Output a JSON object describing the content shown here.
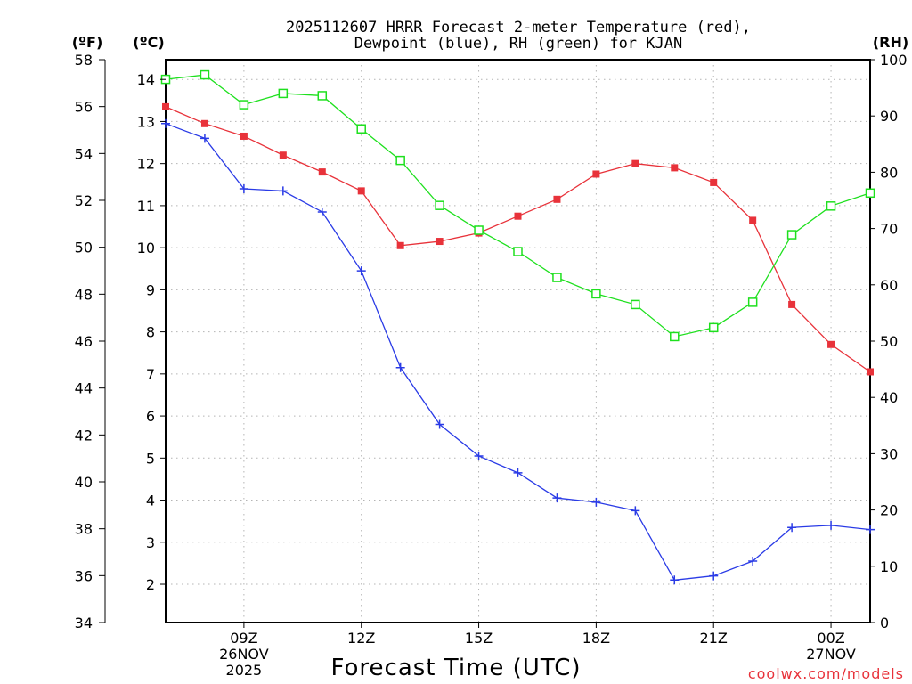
{
  "title_line1": "2025112607 HRRR Forecast 2-meter Temperature (red),",
  "title_line2": "Dewpoint (blue), RH (green) for KJAN",
  "units": {
    "fahrenheit": "(ºF)",
    "celsius": "(ºC)",
    "rh": "(RH)"
  },
  "xlabel": "Forecast Time (UTC)",
  "credit": "coolwx.com/models",
  "colors": {
    "temperature": "#e8323a",
    "dewpoint": "#2a3be6",
    "rh": "#1ee01e",
    "credit": "#e8323a"
  },
  "chart_data": {
    "type": "line",
    "title": "2025112607 HRRR Forecast 2-meter Temperature (red), Dewpoint (blue), RH (green) for KJAN",
    "xlabel": "Forecast Time (UTC)",
    "x_hours_utc": [
      7,
      8,
      9,
      10,
      11,
      12,
      13,
      14,
      15,
      16,
      17,
      18,
      19,
      20,
      21,
      22,
      23,
      24,
      25
    ],
    "xlim": [
      7,
      25
    ],
    "x_ticks": [
      {
        "hour": 9,
        "lines": [
          "09Z",
          "26NOV",
          "2025"
        ]
      },
      {
        "hour": 12,
        "lines": [
          "12Z"
        ]
      },
      {
        "hour": 15,
        "lines": [
          "15Z"
        ]
      },
      {
        "hour": 18,
        "lines": [
          "18Z"
        ]
      },
      {
        "hour": 21,
        "lines": [
          "21Z"
        ]
      },
      {
        "hour": 24,
        "lines": [
          "00Z",
          "27NOV"
        ]
      }
    ],
    "y_celsius": {
      "label": "(ºC)",
      "lim": [
        1.09,
        14.47
      ],
      "ticks": [
        2,
        3,
        4,
        5,
        6,
        7,
        8,
        9,
        10,
        11,
        12,
        13,
        14
      ]
    },
    "y_fahrenheit": {
      "label": "(ºF)",
      "lim": [
        34,
        58
      ],
      "ticks": [
        34,
        36,
        38,
        40,
        42,
        44,
        46,
        48,
        50,
        52,
        54,
        56,
        58
      ]
    },
    "y_rh": {
      "label": "(RH)",
      "lim": [
        0,
        100
      ],
      "ticks": [
        0,
        10,
        20,
        30,
        40,
        50,
        60,
        70,
        80,
        90,
        100
      ]
    },
    "grid": true,
    "series": [
      {
        "name": "Temperature",
        "axis": "celsius",
        "color": "#e8323a",
        "marker": "filled-square",
        "values": [
          13.35,
          12.95,
          12.65,
          12.2,
          11.8,
          11.35,
          10.05,
          10.15,
          10.35,
          10.75,
          11.15,
          11.75,
          12.0,
          11.9,
          11.55,
          10.65,
          8.65,
          7.7,
          7.05
        ]
      },
      {
        "name": "Dewpoint",
        "axis": "celsius",
        "color": "#2a3be6",
        "marker": "plus",
        "values": [
          12.95,
          12.6,
          11.4,
          11.35,
          10.85,
          9.45,
          7.15,
          5.8,
          5.05,
          4.65,
          4.05,
          3.95,
          3.75,
          2.1,
          2.2,
          2.55,
          3.35,
          3.4,
          3.3
        ]
      },
      {
        "name": "RH",
        "axis": "rh",
        "color": "#1ee01e",
        "marker": "open-square",
        "values": [
          96.5,
          97.3,
          92,
          94,
          93.6,
          87.7,
          82.1,
          74.1,
          69.7,
          65.9,
          61.3,
          58.4,
          56.5,
          50.8,
          52.4,
          56.9,
          68.9,
          74,
          76.3
        ]
      }
    ]
  }
}
